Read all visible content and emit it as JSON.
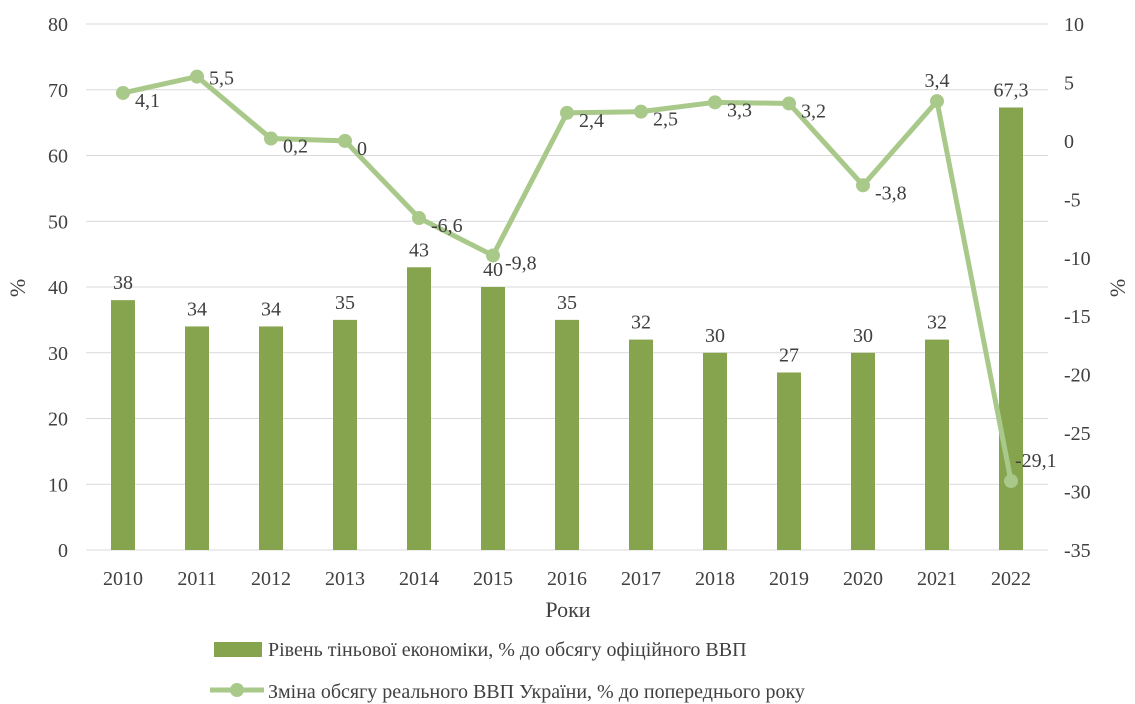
{
  "chart_data": {
    "type": "bar+line",
    "x": [
      "2010",
      "2011",
      "2012",
      "2013",
      "2014",
      "2015",
      "2016",
      "2017",
      "2018",
      "2019",
      "2020",
      "2021",
      "2022"
    ],
    "xlabel": "Роки",
    "ylabel_left": "%",
    "ylabel_right": "%",
    "ylim_left": [
      0,
      80
    ],
    "yticks_left": [
      0,
      10,
      20,
      30,
      40,
      50,
      60,
      70,
      80
    ],
    "ylim_right": [
      -35,
      10
    ],
    "yticks_right": [
      -35,
      -30,
      -25,
      -20,
      -15,
      -10,
      -5,
      0,
      5,
      10
    ],
    "grid": true,
    "legend_position": "bottom",
    "series": [
      {
        "name": "Рівень тіньової економіки, % до обсягу офіційного ВВП",
        "type": "bar",
        "axis": "left",
        "color": "#86a34e",
        "values": [
          38,
          34,
          34,
          35,
          43,
          40,
          35,
          32,
          30,
          27,
          30,
          32,
          67.3
        ],
        "labels": [
          "38",
          "34",
          "34",
          "35",
          "43",
          "40",
          "35",
          "32",
          "30",
          "27",
          "30",
          "32",
          "67,3"
        ]
      },
      {
        "name": "Зміна обсягу реального ВВП України, % до попереднього року",
        "type": "line",
        "axis": "right",
        "color": "#a9c98a",
        "values": [
          4.1,
          5.5,
          0.2,
          0,
          -6.6,
          -9.8,
          2.4,
          2.5,
          3.3,
          3.2,
          -3.8,
          3.4,
          -29.1
        ],
        "labels": [
          "4,1",
          "5,5",
          "0,2",
          "0",
          "-6,6",
          "-9,8",
          "2,4",
          "2,5",
          "3,3",
          "3,2",
          "-3,8",
          "3,4",
          "-29,1"
        ]
      }
    ]
  }
}
